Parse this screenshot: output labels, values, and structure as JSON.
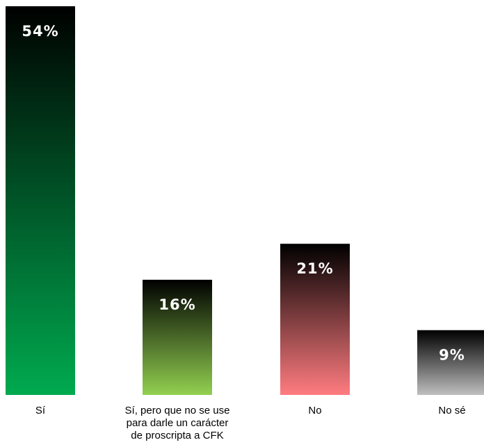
{
  "chart_data": {
    "type": "bar",
    "categories": [
      [
        "Sí"
      ],
      [
        "Sí, pero que no se use",
        "para darle un carácter",
        "de proscripta a CFK"
      ],
      [
        "No"
      ],
      [
        "No sé"
      ]
    ],
    "values": [
      54,
      16,
      21,
      9
    ],
    "value_labels": [
      "54%",
      "16%",
      "21%",
      "9%"
    ],
    "ylim": [
      0,
      54
    ],
    "grid": false,
    "legend": "none",
    "bar_colors": [
      {
        "top": "#000000",
        "bottom": "#00aa4f"
      },
      {
        "top": "#000000",
        "bottom": "#92d050"
      },
      {
        "top": "#000000",
        "bottom": "#ff7c80"
      },
      {
        "top": "#000000",
        "bottom": "#bfbfbf"
      }
    ]
  }
}
